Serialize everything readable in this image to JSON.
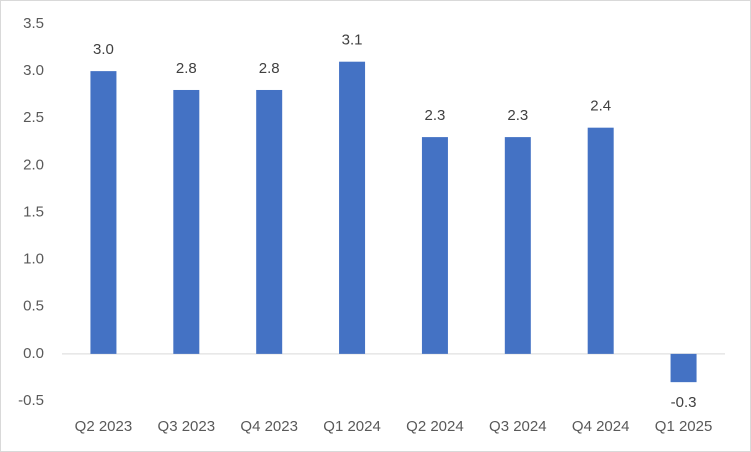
{
  "chart_data": {
    "type": "bar",
    "categories": [
      "Q2 2023",
      "Q3 2023",
      "Q4 2023",
      "Q1 2024",
      "Q2 2024",
      "Q3 2024",
      "Q4 2024",
      "Q1 2025"
    ],
    "values": [
      3.0,
      2.8,
      2.8,
      3.1,
      2.3,
      2.3,
      2.4,
      -0.3
    ],
    "value_labels": [
      "3.0",
      "2.8",
      "2.8",
      "3.1",
      "2.3",
      "2.3",
      "2.4",
      "-0.3"
    ],
    "color": "#4472c4",
    "ylim": [
      -0.5,
      3.5
    ],
    "yticks": [
      -0.5,
      {
        "value": 0,
        "label": "0.0"
      },
      0.5,
      {
        "value": 1,
        "label": "1.0"
      },
      1.5,
      {
        "value": 2,
        "label": "2.0"
      },
      2.5,
      {
        "value": 3,
        "label": "3.0"
      },
      3.5
    ],
    "grid": false
  }
}
